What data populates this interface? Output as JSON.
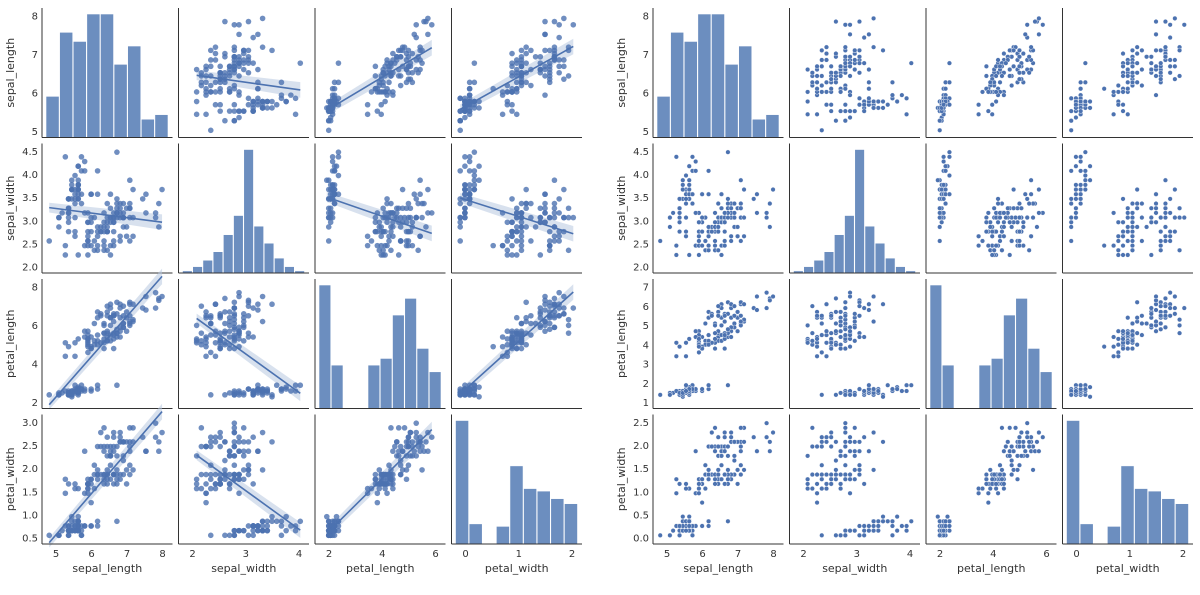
{
  "colors": {
    "point": "#4c72b0",
    "bar": "#6c8ebf",
    "line": "#4c72b0",
    "band": "#b8c8e0",
    "axis": "#333333"
  },
  "chart_data": [
    {
      "type": "scatter",
      "title": "",
      "variables": [
        "sepal_length",
        "sepal_width",
        "petal_length",
        "petal_width"
      ],
      "diagonal": "histogram",
      "offdiagonal": "regression scatter with linear fit and confidence band",
      "grid": false,
      "axes": {
        "sepal_length": {
          "lim": [
            4.2,
            8.0
          ],
          "ticks": [
            5,
            6,
            7,
            8
          ],
          "bin_counts": [
            9,
            23,
            21,
            27,
            27,
            16,
            20,
            4,
            5
          ]
        },
        "sepal_width": {
          "lim": [
            1.9,
            4.5
          ],
          "ticks": [
            2.0,
            2.5,
            3.0,
            3.5,
            4.0,
            4.5
          ],
          "tick_labels": [
            "2",
            "3",
            "4"
          ],
          "bin_counts": [
            1,
            3,
            6,
            10,
            18,
            27,
            58,
            22,
            14,
            7,
            3,
            1
          ]
        },
        "petal_length": {
          "lim": [
            0.8,
            7.1
          ],
          "ticks": [
            2,
            4,
            6,
            8
          ],
          "bin_counts": [
            37,
            13,
            0,
            0,
            13,
            15,
            28,
            33,
            18,
            11
          ]
        },
        "petal_width": {
          "lim": [
            0.0,
            2.6
          ],
          "ticks": [
            0.5,
            1.0,
            1.5,
            2.0,
            2.5,
            3.0
          ],
          "bin_counts": [
            49,
            8,
            0,
            7,
            31,
            22,
            21,
            18,
            16
          ]
        }
      },
      "row_tick_labels": {
        "sepal_length": [
          "5",
          "6",
          "7",
          "8"
        ],
        "sepal_width": [
          "2.0",
          "2.5",
          "3.0",
          "3.5",
          "4.0",
          "4.5"
        ],
        "petal_length": [
          "2",
          "4",
          "6",
          "8"
        ],
        "petal_width": [
          "0.5",
          "1.0",
          "1.5",
          "2.0",
          "2.5",
          "3.0"
        ]
      },
      "col_tick_labels": {
        "sepal_length": [
          "5",
          "6",
          "7",
          "8"
        ],
        "sepal_width": [
          "2",
          "3",
          "4"
        ],
        "petal_length": [
          "2",
          "4",
          "6"
        ],
        "petal_width": [
          "0",
          "1",
          "2"
        ]
      }
    },
    {
      "type": "scatter",
      "title": "",
      "variables": [
        "sepal_length",
        "sepal_width",
        "petal_length",
        "petal_width"
      ],
      "diagonal": "histogram",
      "offdiagonal": "scatter",
      "grid": false,
      "row_tick_labels": {
        "sepal_length": [
          "5",
          "6",
          "7",
          "8"
        ],
        "sepal_width": [
          "2.0",
          "2.5",
          "3.0",
          "3.5",
          "4.0",
          "4.5"
        ],
        "petal_length": [
          "1",
          "2",
          "3",
          "4",
          "5",
          "6",
          "7"
        ],
        "petal_width": [
          "0.0",
          "0.5",
          "1.0",
          "1.5",
          "2.0",
          "2.5"
        ]
      },
      "col_tick_labels": {
        "sepal_length": [
          "5",
          "6",
          "7",
          "8"
        ],
        "sepal_width": [
          "2",
          "3",
          "4"
        ],
        "petal_length": [
          "2",
          "4",
          "6"
        ],
        "petal_width": [
          "0",
          "1",
          "2"
        ]
      }
    }
  ]
}
